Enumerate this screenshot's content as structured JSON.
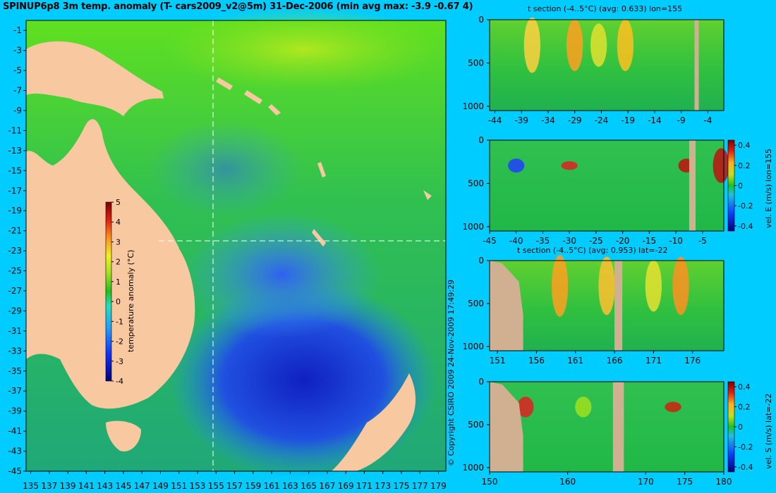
{
  "main_title": "SPINUP6p8 3m temp. anomaly (T- cars2009_v2@5m) 31-Dec-2006 (min avg max: -3.9 -0.67 4)",
  "copyright": "© Copyright CSIRO 2009   24-Nov-2009 17:49:29",
  "colors": {
    "background": "#00ccff",
    "land": "#f8c8a0",
    "section_land": "#d0b090",
    "anomaly_zero": "#20c020"
  },
  "chart_data": [
    {
      "type": "heatmap",
      "name": "map",
      "x_ticks": [
        "135",
        "137",
        "139",
        "141",
        "143",
        "145",
        "147",
        "149",
        "151",
        "153",
        "155",
        "157",
        "159",
        "161",
        "163",
        "165",
        "167",
        "169",
        "171",
        "173",
        "175",
        "177",
        "179"
      ],
      "y_ticks": [
        "-1",
        "-3",
        "-5",
        "-7",
        "-9",
        "-11",
        "-13",
        "-15",
        "-17",
        "-19",
        "-21",
        "-23",
        "-25",
        "-27",
        "-29",
        "-31",
        "-33",
        "-35",
        "-37",
        "-39",
        "-41",
        "-43",
        "-45"
      ],
      "xlim": [
        134.5,
        179.8
      ],
      "ylim": [
        -45,
        0
      ],
      "section_lon": 155,
      "section_lat": -22,
      "colorbar": {
        "label": "temperature anomaly (°C)",
        "ticks": [
          "5",
          "4",
          "3",
          "2",
          "1",
          "0",
          "-1",
          "-2",
          "-3",
          "-4"
        ],
        "range": [
          -4,
          5
        ]
      }
    },
    {
      "type": "heatmap",
      "name": "section-1",
      "title": "t section (-4..5°C) (avg: 0.633) lon=155",
      "x_ticks": [
        "-44",
        "-39",
        "-34",
        "-29",
        "-24",
        "-19",
        "-14",
        "-9",
        "-4"
      ],
      "xlim": [
        -45,
        -1
      ],
      "y_ticks": [
        "0",
        "500",
        "1000"
      ],
      "ylim": [
        0,
        1050
      ]
    },
    {
      "type": "heatmap",
      "name": "section-2",
      "x_ticks": [
        "-45",
        "-40",
        "-35",
        "-30",
        "-25",
        "-20",
        "-15",
        "-10",
        "-5"
      ],
      "xlim": [
        -45,
        -1
      ],
      "y_ticks": [
        "0",
        "500",
        "1000"
      ],
      "ylim": [
        0,
        1050
      ],
      "colorbar": {
        "label": "vel. E (m/s) lon=155",
        "ticks": [
          "0.4",
          "0.2",
          "0",
          "-0.2",
          "-0.4"
        ],
        "range": [
          -0.45,
          0.45
        ]
      }
    },
    {
      "type": "heatmap",
      "name": "section-3",
      "title": "t section (-4..5°C) (avg: 0.953) lat=-22",
      "x_ticks": [
        "151",
        "156",
        "161",
        "166",
        "171",
        "176"
      ],
      "xlim": [
        150,
        180
      ],
      "y_ticks": [
        "0",
        "500",
        "1000"
      ],
      "ylim": [
        0,
        1050
      ]
    },
    {
      "type": "heatmap",
      "name": "section-4",
      "x_ticks": [
        "150",
        "160",
        "170",
        "175",
        "180"
      ],
      "x_tick_values": [
        150,
        160,
        170,
        175,
        180
      ],
      "xlim": [
        150,
        180
      ],
      "y_ticks": [
        "0",
        "500",
        "1000"
      ],
      "ylim": [
        0,
        1050
      ],
      "colorbar": {
        "label": "vel. S (m/s) lat=-22",
        "ticks": [
          "0.4",
          "0.2",
          "0",
          "-0.2",
          "-0.4"
        ],
        "range": [
          -0.45,
          0.45
        ]
      }
    }
  ]
}
